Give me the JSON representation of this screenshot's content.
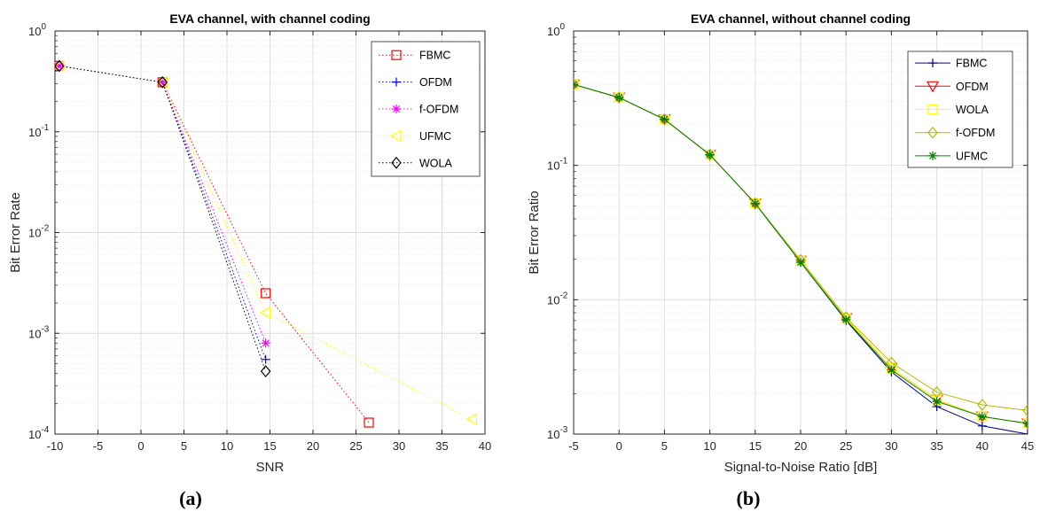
{
  "chart_data": [
    {
      "type": "line",
      "panel": "(a)",
      "title": "EVA channel, with channel coding",
      "xlabel": "SNR",
      "ylabel": "Bit Error Rate",
      "xlim": [
        -10,
        40
      ],
      "ylim": [
        0.0001,
        1
      ],
      "yscale": "log",
      "grid": true,
      "legend_position": "top-right",
      "x_ticks": [
        -10,
        -5,
        0,
        5,
        10,
        15,
        20,
        25,
        30,
        35,
        40
      ],
      "x_tick_labels": [
        "-10",
        "-5",
        "0",
        "5",
        "10",
        "15",
        "20",
        "25",
        "30",
        "35",
        "40"
      ],
      "series": [
        {
          "name": "FBMC",
          "color": "#ff0000",
          "line": "dotted",
          "marker": "square",
          "points": [
            [
              -9.5,
              0.45
            ],
            [
              2.5,
              0.31
            ],
            [
              14.5,
              0.0025
            ],
            [
              26.5,
              0.00013
            ]
          ]
        },
        {
          "name": "OFDM",
          "color": "#0000ff",
          "line": "dotted",
          "marker": "plus",
          "points": [
            [
              -9.5,
              0.45
            ],
            [
              2.5,
              0.31
            ],
            [
              14.5,
              0.00055
            ]
          ]
        },
        {
          "name": "f-OFDM",
          "color": "#ff00ff",
          "line": "dotted",
          "marker": "asterisk",
          "points": [
            [
              -9.5,
              0.45
            ],
            [
              2.5,
              0.31
            ],
            [
              14.5,
              0.0008
            ]
          ]
        },
        {
          "name": "UFMC",
          "color": "#ffff00",
          "line": "dotted",
          "marker": "triangle-left",
          "points": [
            [
              -9.5,
              0.45
            ],
            [
              2.5,
              0.31
            ],
            [
              14.5,
              0.0016
            ],
            [
              38.5,
              0.00014
            ]
          ]
        },
        {
          "name": "WOLA",
          "color": "#000000",
          "line": "dotted",
          "marker": "diamond",
          "points": [
            [
              -9.5,
              0.45
            ],
            [
              2.5,
              0.31
            ],
            [
              14.5,
              0.00042
            ]
          ]
        }
      ]
    },
    {
      "type": "line",
      "panel": "(b)",
      "title": "EVA channel, without channel coding",
      "xlabel": "Signal-to-Noise Ratio [dB]",
      "ylabel": "Bit Error Ratio",
      "xlim": [
        -5,
        45
      ],
      "ylim": [
        0.001,
        1
      ],
      "yscale": "log",
      "grid": true,
      "legend_position": "top-right",
      "x_ticks": [
        -5,
        0,
        5,
        10,
        15,
        20,
        25,
        30,
        35,
        40,
        45
      ],
      "x_tick_labels": [
        "-5",
        "0",
        "5",
        "10",
        "15",
        "20",
        "25",
        "30",
        "35",
        "40",
        "45"
      ],
      "series": [
        {
          "name": "FBMC",
          "color": "#00008b",
          "line": "solid",
          "marker": "plus",
          "x": [
            -5,
            0,
            5,
            10,
            15,
            20,
            25,
            30,
            35,
            40,
            45
          ],
          "values": [
            0.4,
            0.32,
            0.22,
            0.12,
            0.052,
            0.019,
            0.007,
            0.0029,
            0.0016,
            0.00115,
            0.001
          ]
        },
        {
          "name": "OFDM",
          "color": "#ff0000",
          "line": "solid",
          "marker": "triangle-down",
          "x": [
            -5,
            0,
            5,
            10,
            15,
            20,
            25,
            30,
            35,
            40,
            45
          ],
          "values": [
            0.4,
            0.32,
            0.22,
            0.12,
            0.052,
            0.0195,
            0.0073,
            0.0031,
            0.0018,
            0.00135,
            0.0012
          ]
        },
        {
          "name": "WOLA",
          "color": "#ffff00",
          "line": "solid",
          "marker": "square",
          "x": [
            -5,
            0,
            5,
            10,
            15,
            20,
            25,
            30,
            35,
            40,
            45
          ],
          "values": [
            0.4,
            0.32,
            0.22,
            0.12,
            0.052,
            0.0195,
            0.0073,
            0.0031,
            0.0018,
            0.00135,
            0.0012
          ]
        },
        {
          "name": "f-OFDM",
          "color": "#b8b800",
          "line": "solid",
          "marker": "diamond",
          "x": [
            -5,
            0,
            5,
            10,
            15,
            20,
            25,
            30,
            35,
            40,
            45
          ],
          "values": [
            0.4,
            0.32,
            0.22,
            0.12,
            0.052,
            0.0197,
            0.0074,
            0.0034,
            0.00205,
            0.00165,
            0.0015
          ]
        },
        {
          "name": "UFMC",
          "color": "#008000",
          "line": "solid",
          "marker": "asterisk",
          "x": [
            -5,
            0,
            5,
            10,
            15,
            20,
            25,
            30,
            35,
            40,
            45
          ],
          "values": [
            0.4,
            0.32,
            0.22,
            0.12,
            0.052,
            0.019,
            0.0071,
            0.003,
            0.00175,
            0.00135,
            0.0012
          ]
        }
      ]
    }
  ],
  "captions": {
    "a": "(a)",
    "b": "(b)"
  }
}
